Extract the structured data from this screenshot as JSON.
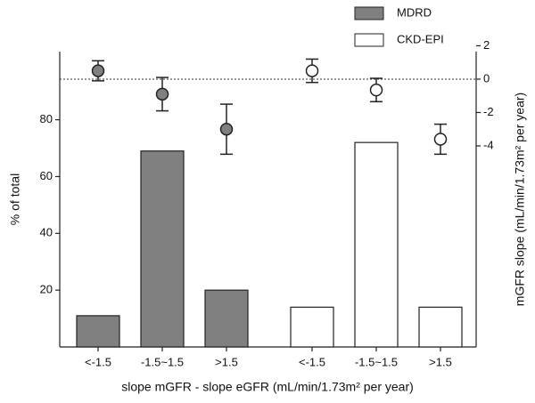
{
  "chart_data": {
    "type": "bar-dot",
    "categories": [
      "<-1.5",
      "-1.5~1.5",
      ">1.5"
    ],
    "series": [
      {
        "name": "MDRD",
        "color": "#808080",
        "values": [
          11,
          69,
          20
        ],
        "y2_values": [
          0.5,
          -0.9,
          -3.0
        ],
        "y2_errors": [
          0.6,
          1.0,
          1.5
        ]
      },
      {
        "name": "CKD-EPI",
        "color": "#ffffff",
        "values": [
          14,
          72,
          14
        ],
        "y2_values": [
          0.5,
          -0.65,
          -3.6
        ],
        "y2_errors": [
          0.7,
          0.7,
          0.9
        ]
      }
    ],
    "ylabel": "% of total",
    "y2label": "mGFR slope (mL/min/1.73m² per year)",
    "xlabel": "slope mGFR - slope eGFR (mL/min/1.73m² per year)",
    "ylim": [
      0,
      104
    ],
    "yticks": [
      20,
      40,
      60,
      80
    ],
    "y2lim": [
      -16.05,
      1.65
    ],
    "y2ticks": [
      -4,
      -2,
      0,
      2
    ],
    "reference_y2": 0
  }
}
